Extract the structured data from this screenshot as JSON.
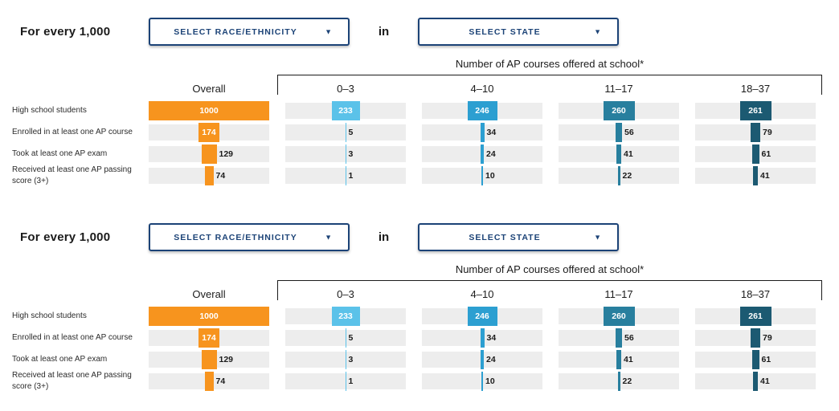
{
  "page": {
    "background": "#ffffff"
  },
  "colors": {
    "navy": "#1C4377",
    "track": "#EDEDED",
    "bracket": "#1b1b1b",
    "value_inside_text": "#ffffff",
    "value_outside_text": "#1b1b1b",
    "overall": "#F7941E",
    "courses_0_3": "#5BC2E9",
    "courses_4_10": "#2C9FD1",
    "courses_11_17": "#287F9E",
    "courses_18_37": "#1C5A72"
  },
  "sections": [
    {
      "prefix_label": "For every 1,000",
      "race_dropdown": {
        "label": "SELECT RACE/ETHNICITY",
        "caret": "▼"
      },
      "conjunction": "in",
      "state_dropdown": {
        "label": "SELECT STATE",
        "caret": "▼"
      },
      "group_header": "Number of AP courses offered at school*",
      "columns": [
        {
          "label": "Overall",
          "color": "#F7941E"
        },
        {
          "label": "0–3",
          "color": "#5BC2E9"
        },
        {
          "label": "4–10",
          "color": "#2C9FD1"
        },
        {
          "label": "11–17",
          "color": "#287F9E"
        },
        {
          "label": "18–37",
          "color": "#1C5A72"
        }
      ],
      "scale_max": 1000,
      "rows": [
        {
          "label": "High school students",
          "values": [
            1000,
            233,
            246,
            260,
            261
          ]
        },
        {
          "label": "Enrolled in at least one AP course",
          "values": [
            174,
            5,
            34,
            56,
            79
          ]
        },
        {
          "label": "Took at least one AP exam",
          "values": [
            129,
            3,
            24,
            41,
            61
          ]
        },
        {
          "label": "Received at least one AP passing score (3+)",
          "values": [
            74,
            1,
            10,
            22,
            41
          ]
        }
      ]
    },
    {
      "prefix_label": "For every 1,000",
      "race_dropdown": {
        "label": "SELECT RACE/ETHNICITY",
        "caret": "▼"
      },
      "conjunction": "in",
      "state_dropdown": {
        "label": "SELECT STATE",
        "caret": "▼"
      },
      "group_header": "Number of AP courses offered at school*",
      "columns": [
        {
          "label": "Overall",
          "color": "#F7941E"
        },
        {
          "label": "0–3",
          "color": "#5BC2E9"
        },
        {
          "label": "4–10",
          "color": "#2C9FD1"
        },
        {
          "label": "11–17",
          "color": "#287F9E"
        },
        {
          "label": "18–37",
          "color": "#1C5A72"
        }
      ],
      "scale_max": 1000,
      "rows": [
        {
          "label": "High school students",
          "values": [
            1000,
            233,
            246,
            260,
            261
          ]
        },
        {
          "label": "Enrolled in at least one AP course",
          "values": [
            174,
            5,
            34,
            56,
            79
          ]
        },
        {
          "label": "Took at least one AP exam",
          "values": [
            129,
            3,
            24,
            41,
            61
          ]
        },
        {
          "label": "Received at least one AP passing score (3+)",
          "values": [
            74,
            1,
            10,
            22,
            41
          ]
        }
      ]
    }
  ],
  "chart_data": [
    {
      "type": "bar",
      "orientation": "horizontal-centered",
      "title": "Number of AP courses offered at school*",
      "categories": [
        "High school students",
        "Enrolled in at least one AP course",
        "Took at least one AP exam",
        "Received at least one AP passing score (3+)"
      ],
      "series": [
        {
          "name": "Overall",
          "color": "#F7941E",
          "values": [
            1000,
            174,
            129,
            74
          ]
        },
        {
          "name": "0–3",
          "color": "#5BC2E9",
          "values": [
            233,
            5,
            3,
            1
          ]
        },
        {
          "name": "4–10",
          "color": "#2C9FD1",
          "values": [
            246,
            34,
            24,
            10
          ]
        },
        {
          "name": "11–17",
          "color": "#287F9E",
          "values": [
            260,
            56,
            41,
            22
          ]
        },
        {
          "name": "18–37",
          "color": "#1C5A72",
          "values": [
            261,
            79,
            61,
            41
          ]
        }
      ],
      "xlim": [
        0,
        1000
      ],
      "grid": false,
      "legend_position": "column-headers"
    },
    {
      "type": "bar",
      "orientation": "horizontal-centered",
      "title": "Number of AP courses offered at school*",
      "categories": [
        "High school students",
        "Enrolled in at least one AP course",
        "Took at least one AP exam",
        "Received at least one AP passing score (3+)"
      ],
      "series": [
        {
          "name": "Overall",
          "color": "#F7941E",
          "values": [
            1000,
            174,
            129,
            74
          ]
        },
        {
          "name": "0–3",
          "color": "#5BC2E9",
          "values": [
            233,
            5,
            3,
            1
          ]
        },
        {
          "name": "4–10",
          "color": "#2C9FD1",
          "values": [
            246,
            34,
            24,
            10
          ]
        },
        {
          "name": "11–17",
          "color": "#287F9E",
          "values": [
            260,
            56,
            41,
            22
          ]
        },
        {
          "name": "18–37",
          "color": "#1C5A72",
          "values": [
            261,
            79,
            61,
            41
          ]
        }
      ],
      "xlim": [
        0,
        1000
      ],
      "grid": false,
      "legend_position": "column-headers"
    }
  ]
}
